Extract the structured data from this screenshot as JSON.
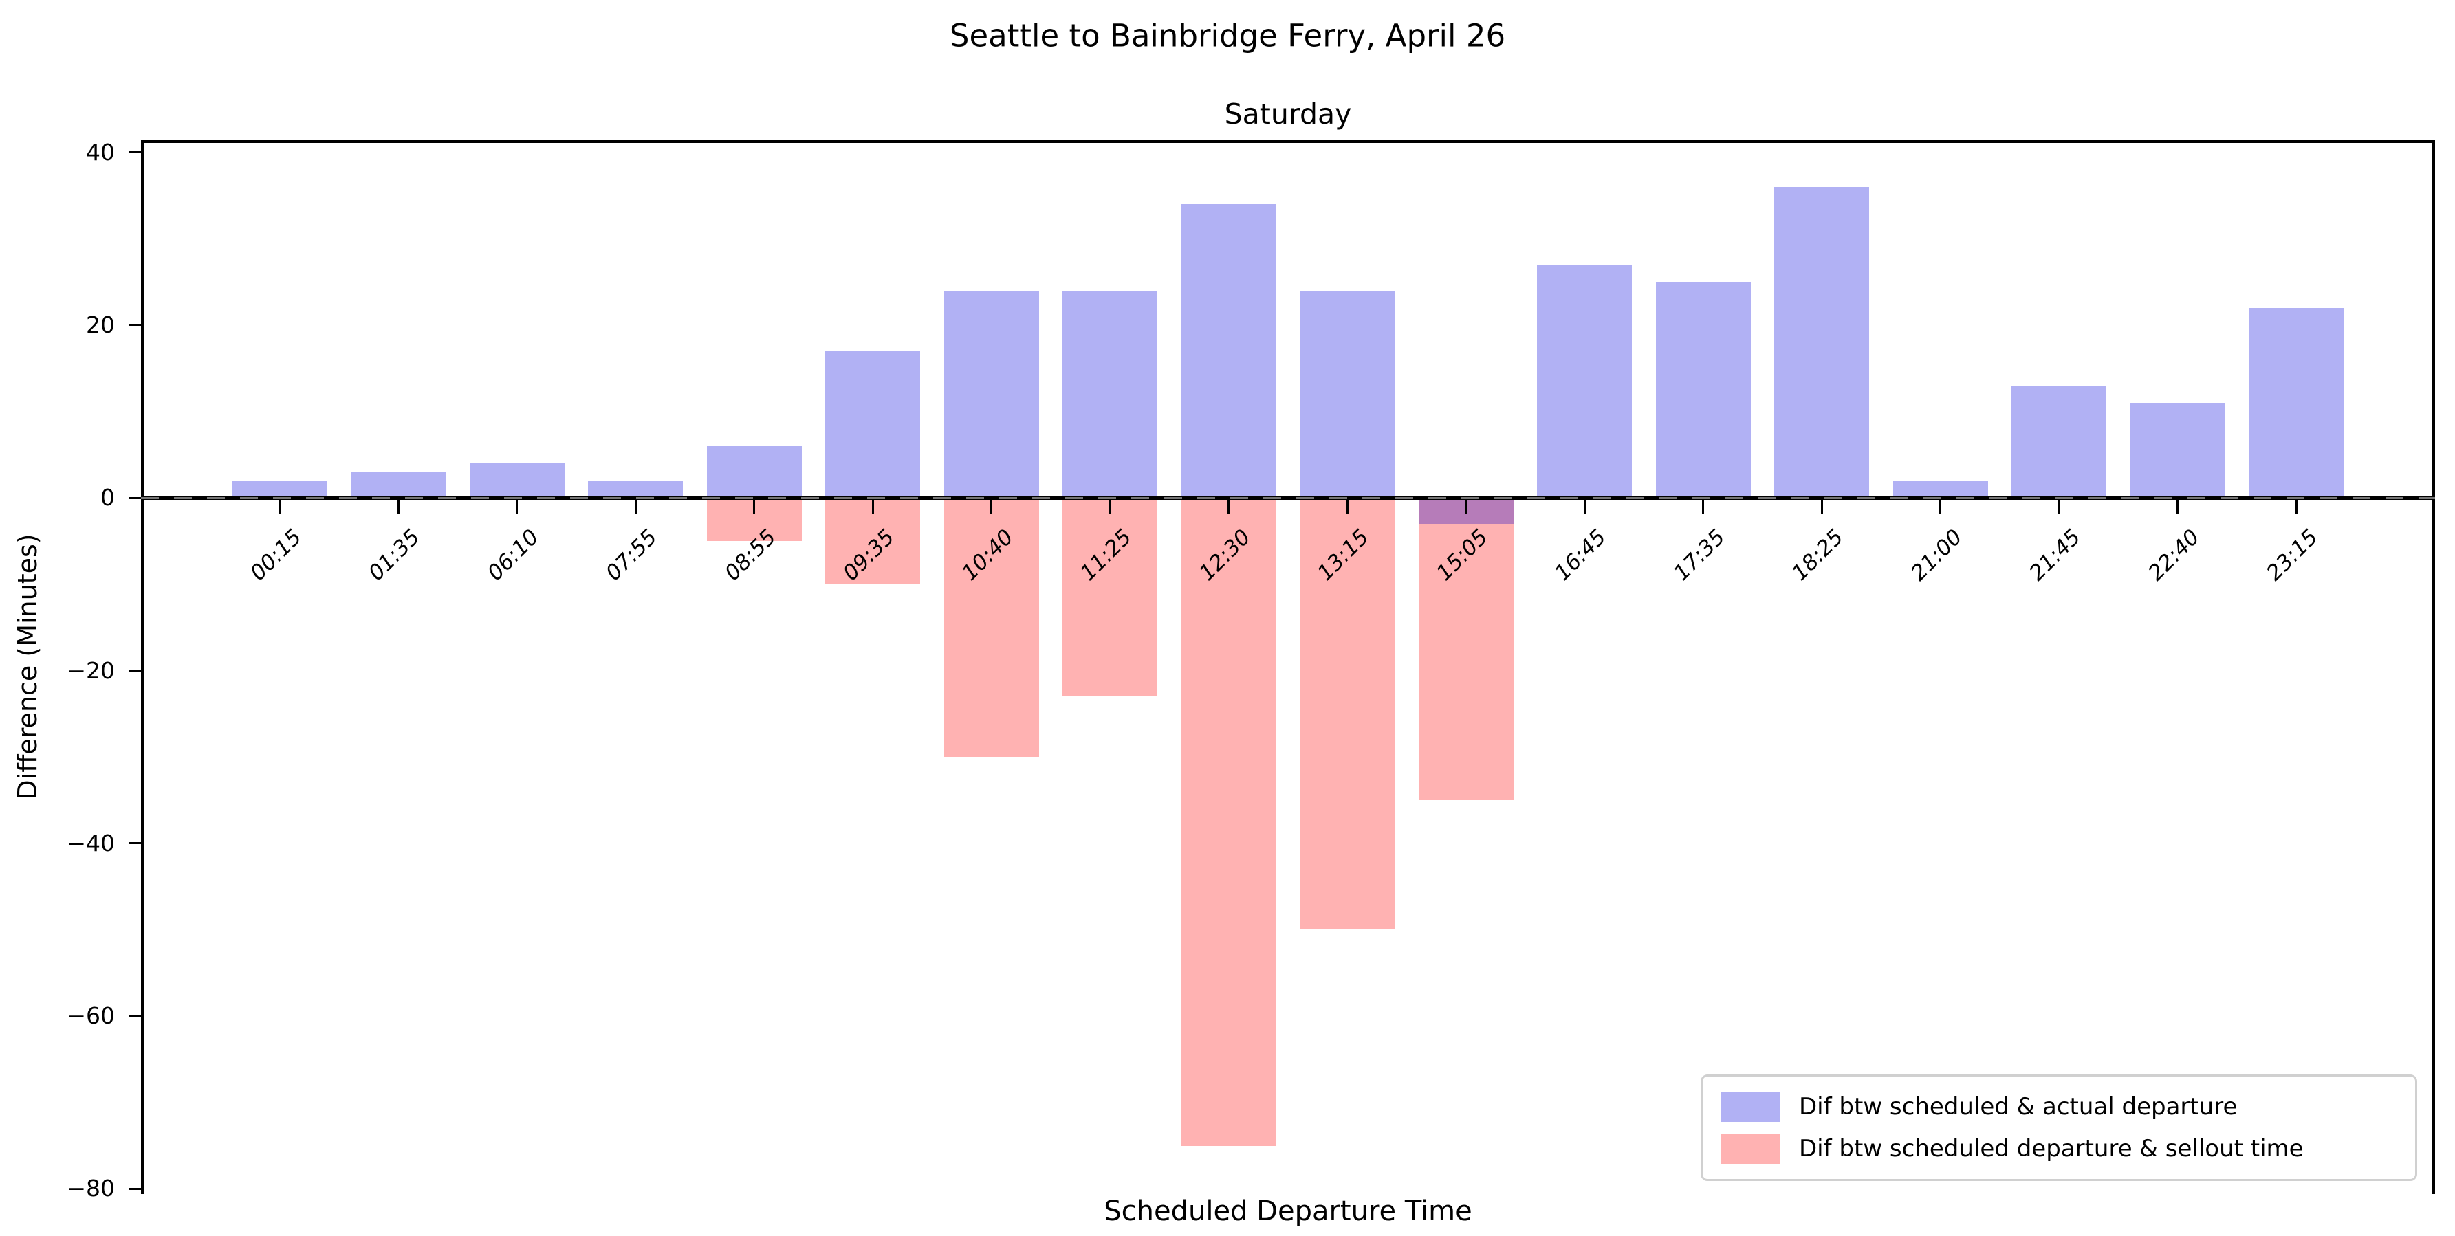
{
  "figure": {
    "suptitle": "Seattle to Bainbridge Ferry, April 26",
    "background_color": "#ffffff",
    "axis_color": "#000000"
  },
  "chart_data": {
    "type": "bar",
    "title": "Saturday",
    "xlabel": "Scheduled Departure Time",
    "ylabel": "Difference (Minutes)",
    "categories": [
      "00:15",
      "01:35",
      "06:10",
      "07:55",
      "08:55",
      "09:35",
      "10:40",
      "11:25",
      "12:30",
      "13:15",
      "15:05",
      "16:45",
      "17:35",
      "18:25",
      "21:00",
      "21:45",
      "22:40",
      "23:15"
    ],
    "series": [
      {
        "name": "Dif btw scheduled & actual departure",
        "color": "#b1b1f4",
        "values": [
          2,
          3,
          4,
          2,
          6,
          17,
          24,
          24,
          34,
          24,
          -3,
          27,
          25,
          36,
          2,
          13,
          11,
          22
        ]
      },
      {
        "name": "Dif btw scheduled departure & sellout time",
        "color": "#ffb2b2",
        "values": [
          0,
          0,
          0,
          0,
          -5,
          -10,
          -30,
          -23,
          -75,
          -50,
          -35,
          0,
          0,
          0,
          0,
          0,
          0,
          0
        ]
      }
    ],
    "overlap_color": "#b67cb9",
    "yticks": [
      40,
      20,
      0,
      -20,
      -40,
      -60,
      -80
    ],
    "ylim": [
      -80.6,
      41.4
    ],
    "bar_width_fraction": 0.8,
    "grid": false,
    "legend_position": "lower right",
    "legend_border_color": "#d0d0d0",
    "zero_line": true
  }
}
